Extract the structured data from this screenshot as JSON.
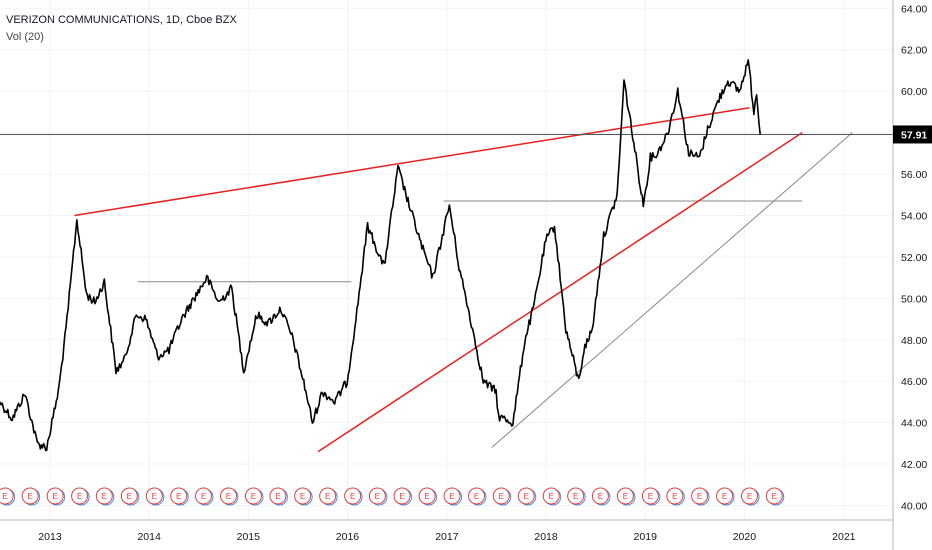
{
  "title": "VERIZON COMMUNICATIONS, 1D, Cboe BZX",
  "volume_label": "Vol (20)",
  "last_price_tag": "57.91",
  "earnings_marker": "E",
  "colors": {
    "price": "#000000",
    "trend": "#e8201f",
    "level": "#8a8a8a",
    "tag_bg": "#000000",
    "earnings": "#e04040",
    "earnings_alt": "#4a90d9"
  },
  "chart_data": {
    "type": "line",
    "title": "VERIZON COMMUNICATIONS, 1D, Cboe BZX",
    "x_axis": {
      "type": "date",
      "range": [
        "2012-07-01",
        "2021-07-01"
      ],
      "ticks": [
        "2013",
        "2014",
        "2015",
        "2016",
        "2017",
        "2018",
        "2019",
        "2020",
        "2021"
      ],
      "tick_dates": [
        "2013-01-01",
        "2014-01-01",
        "2015-01-01",
        "2016-01-01",
        "2017-01-01",
        "2018-01-01",
        "2019-01-01",
        "2020-01-01",
        "2021-01-01"
      ]
    },
    "y_axis": {
      "range": [
        39.3,
        64.4
      ],
      "ticks": [
        "40.00",
        "42.00",
        "44.00",
        "46.00",
        "48.00",
        "50.00",
        "52.00",
        "54.00",
        "56.00",
        "58.00",
        "60.00",
        "62.00",
        "64.00"
      ],
      "tick_values": [
        40,
        42,
        44,
        46,
        48,
        50,
        52,
        54,
        56,
        58,
        60,
        62,
        64
      ],
      "position": "right"
    },
    "grid": true,
    "last_price": 57.91,
    "series": [
      {
        "x": [
          "2012-07-01",
          "2012-08-15",
          "2012-10-01",
          "2012-11-15",
          "2012-12-20",
          "2013-02-01",
          "2013-03-01",
          "2013-04-10",
          "2013-05-15",
          "2013-06-15",
          "2013-07-20",
          "2013-09-01",
          "2013-10-01",
          "2013-11-15",
          "2013-12-20",
          "2014-02-01",
          "2014-03-15",
          "2014-05-01",
          "2014-06-15",
          "2014-08-01",
          "2014-09-15",
          "2014-11-01",
          "2014-12-15",
          "2015-02-01",
          "2015-03-15",
          "2015-05-01",
          "2015-06-15",
          "2015-08-01",
          "2015-08-25",
          "2015-10-01",
          "2015-11-15",
          "2015-12-31",
          "2016-02-01",
          "2016-03-15",
          "2016-05-15",
          "2016-07-05",
          "2016-08-15",
          "2016-10-01",
          "2016-11-10",
          "2016-12-15",
          "2017-01-10",
          "2017-02-15",
          "2017-04-01",
          "2017-05-15",
          "2017-07-01",
          "2017-07-10",
          "2017-09-01",
          "2017-10-15",
          "2017-11-15",
          "2017-12-31",
          "2018-02-01",
          "2018-03-15",
          "2018-05-01",
          "2018-05-20",
          "2018-06-20",
          "2018-08-01",
          "2018-09-20",
          "2018-10-15",
          "2018-11-20",
          "2018-12-25",
          "2019-01-20",
          "2019-02-15",
          "2019-03-25",
          "2019-05-01",
          "2019-06-10",
          "2019-07-20",
          "2019-08-15",
          "2019-09-25",
          "2019-11-01",
          "2019-12-15",
          "2020-01-15",
          "2020-02-05",
          "2020-02-15",
          "2020-02-28"
        ],
        "y": [
          45.0,
          44.2,
          45.4,
          43.0,
          42.8,
          45.5,
          48.5,
          53.8,
          50.2,
          49.8,
          50.8,
          46.5,
          47.0,
          49.2,
          49.0,
          47.2,
          47.5,
          49.0,
          50.0,
          51.0,
          49.8,
          50.5,
          46.5,
          49.2,
          48.8,
          49.5,
          48.0,
          45.5,
          44.0,
          45.5,
          45.0,
          46.0,
          49.0,
          53.5,
          51.5,
          56.3,
          54.5,
          52.5,
          51.0,
          53.0,
          54.5,
          51.5,
          48.8,
          46.0,
          45.5,
          44.3,
          44.0,
          48.0,
          49.5,
          52.8,
          53.5,
          48.5,
          46.0,
          47.5,
          48.5,
          53.0,
          55.0,
          60.5,
          57.5,
          54.5,
          56.8,
          57.0,
          58.0,
          60.0,
          57.0,
          56.8,
          58.0,
          59.5,
          60.5,
          60.0,
          61.5,
          59.0,
          60.0,
          57.91
        ]
      }
    ],
    "trend_lines": [
      {
        "name": "upper-resistance",
        "from": [
          "2013-04-01",
          54.0
        ],
        "to": [
          "2020-01-20",
          59.2
        ]
      },
      {
        "name": "lower-support-red",
        "from": [
          "2015-09-15",
          42.6
        ],
        "to": [
          "2020-08-01",
          58.0
        ]
      },
      {
        "name": "lower-support-gray",
        "from": [
          "2017-06-15",
          42.8
        ],
        "to": [
          "2021-02-01",
          58.0
        ]
      }
    ],
    "horizontal_levels": [
      {
        "from": "2013-11-20",
        "to": "2016-01-15",
        "y": 50.8
      },
      {
        "from": "2016-12-20",
        "to": "2020-08-01",
        "y": 54.7
      }
    ],
    "earnings_markers_dates": [
      "2012-07-20",
      "2012-10-20",
      "2013-01-20",
      "2013-04-20",
      "2013-07-20",
      "2013-10-20",
      "2014-01-20",
      "2014-04-20",
      "2014-07-20",
      "2014-10-20",
      "2015-01-20",
      "2015-04-20",
      "2015-07-20",
      "2015-10-20",
      "2016-01-20",
      "2016-04-20",
      "2016-07-20",
      "2016-10-20",
      "2017-01-20",
      "2017-04-20",
      "2017-07-20",
      "2017-10-20",
      "2018-01-20",
      "2018-04-20",
      "2018-07-20",
      "2018-10-20",
      "2019-01-20",
      "2019-04-20",
      "2019-07-20",
      "2019-10-20",
      "2020-01-20",
      "2020-04-20"
    ]
  }
}
